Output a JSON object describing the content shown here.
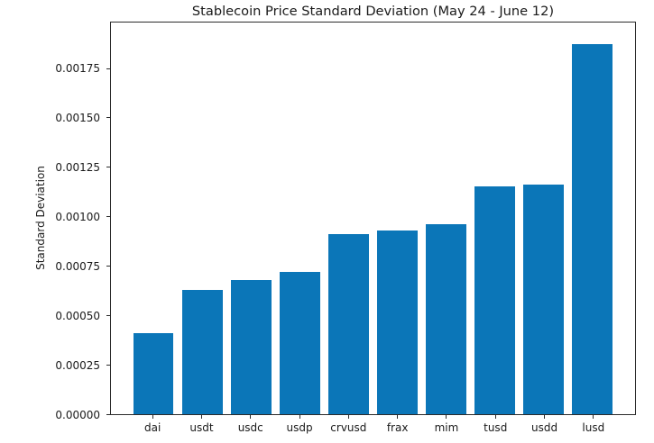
{
  "chart_data": {
    "type": "bar",
    "title": "Stablecoin Price Standard Deviation (May 24 - June 12)",
    "xlabel": "",
    "ylabel": "Standard Deviation",
    "categories": [
      "dai",
      "usdt",
      "usdc",
      "usdp",
      "crvusd",
      "frax",
      "mim",
      "tusd",
      "usdd",
      "lusd"
    ],
    "values": [
      0.00041,
      0.00063,
      0.00068,
      0.00072,
      0.00091,
      0.00093,
      0.00096,
      0.00115,
      0.00116,
      0.00187
    ],
    "ylim": [
      0,
      0.00198
    ],
    "yticks": [
      0.0,
      0.00025,
      0.0005,
      0.00075,
      0.001,
      0.00125,
      0.0015,
      0.00175
    ],
    "ytick_labels": [
      "0.00000",
      "0.00025",
      "0.00050",
      "0.00075",
      "0.00100",
      "0.00125",
      "0.00150",
      "0.00175"
    ],
    "grid": false,
    "legend": null,
    "colors": {
      "bar": "#0b76b8",
      "text": "#1a1a1a",
      "spine": "#2b2b2b",
      "background": "#ffffff"
    }
  }
}
